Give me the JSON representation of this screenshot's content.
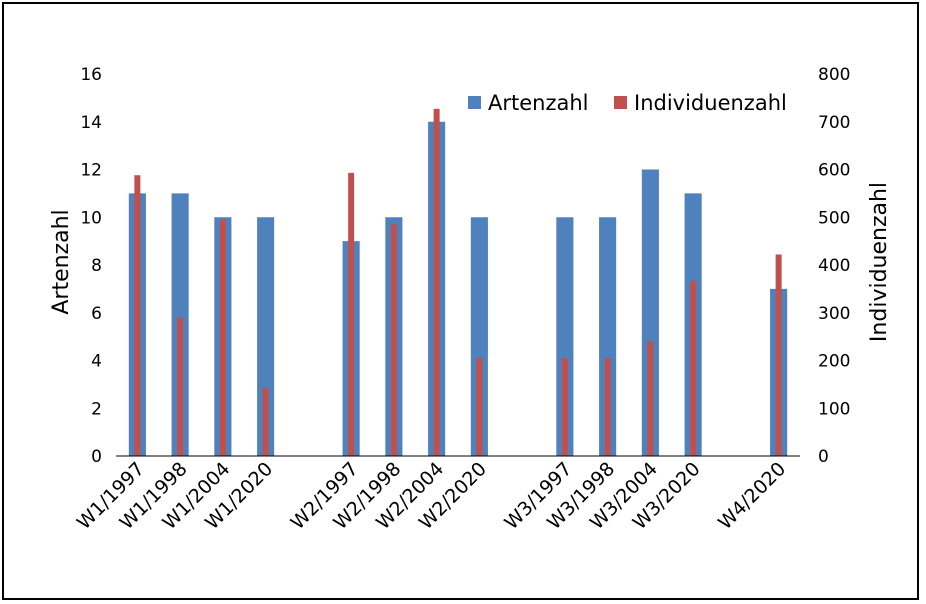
{
  "chart_data": {
    "type": "bar",
    "categories": [
      "W1/1997",
      "W1/1998",
      "W1/2004",
      "W1/2020",
      "",
      "W2/1997",
      "W2/1998",
      "W2/2004",
      "W2/2020",
      "",
      "W3/1997",
      "W3/1998",
      "W3/2004",
      "W3/2020",
      "",
      "W4/2020"
    ],
    "series": [
      {
        "name": "Artenzahl",
        "axis": "left",
        "color": "#4f81bd",
        "values": [
          11,
          11,
          10,
          10,
          null,
          9,
          10,
          14,
          10,
          null,
          10,
          10,
          12,
          11,
          null,
          7
        ]
      },
      {
        "name": "Individuenzahl",
        "axis": "right",
        "color": "#c0504d",
        "values": [
          588,
          290,
          495,
          143,
          null,
          593,
          485,
          727,
          205,
          null,
          205,
          205,
          240,
          367,
          null,
          422
        ]
      }
    ],
    "ylabel": "Artenzahl",
    "ylabel_right": "Individuenzahl",
    "ylim": [
      0,
      16
    ],
    "ylim_right": [
      0,
      800
    ],
    "yticks": [
      "0",
      "2",
      "4",
      "6",
      "8",
      "10",
      "12",
      "14",
      "16"
    ],
    "yticks_right": [
      "0",
      "100",
      "200",
      "300",
      "400",
      "500",
      "600",
      "700",
      "800"
    ],
    "grid": false,
    "legend_position": "top-right"
  }
}
